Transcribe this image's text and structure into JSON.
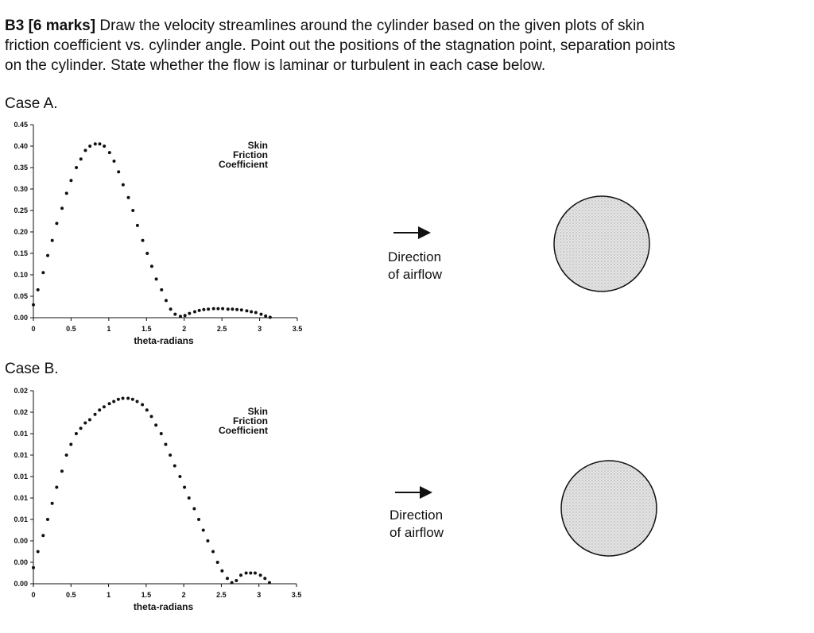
{
  "question": {
    "label": "B3 [6 marks]",
    "lines": [
      "Draw the velocity streamlines around the cylinder based on the given plots of skin",
      "friction coefficient vs. cylinder angle. Point out the positions of the stagnation point, separation points",
      "on the cylinder. State whether the flow is laminar or turbulent in each case below."
    ]
  },
  "cases": [
    {
      "label": "Case A.",
      "direction": [
        "Direction",
        "of airflow"
      ]
    },
    {
      "label": "Case B.",
      "direction": [
        "Direction",
        "of airflow"
      ]
    }
  ],
  "chart_data": [
    {
      "type": "scatter",
      "annotation": [
        "Skin",
        "Friction",
        "Coefficient"
      ],
      "xlabel": "theta-radians",
      "color": "#111111",
      "x": [
        0,
        0.06,
        0.13,
        0.19,
        0.25,
        0.31,
        0.38,
        0.44,
        0.5,
        0.57,
        0.63,
        0.69,
        0.75,
        0.82,
        0.88,
        0.94,
        1.01,
        1.07,
        1.13,
        1.19,
        1.26,
        1.32,
        1.38,
        1.45,
        1.51,
        1.57,
        1.63,
        1.7,
        1.76,
        1.82,
        1.88,
        1.95,
        2.01,
        2.07,
        2.14,
        2.2,
        2.26,
        2.32,
        2.39,
        2.45,
        2.51,
        2.58,
        2.64,
        2.7,
        2.76,
        2.83,
        2.89,
        2.95,
        3.02,
        3.08,
        3.14
      ],
      "values": [
        0.03,
        0.065,
        0.105,
        0.145,
        0.18,
        0.22,
        0.255,
        0.29,
        0.32,
        0.35,
        0.37,
        0.39,
        0.4,
        0.405,
        0.405,
        0.4,
        0.385,
        0.365,
        0.34,
        0.31,
        0.28,
        0.25,
        0.215,
        0.18,
        0.15,
        0.12,
        0.09,
        0.065,
        0.04,
        0.02,
        0.008,
        0.003,
        0.005,
        0.01,
        0.014,
        0.017,
        0.019,
        0.02,
        0.021,
        0.021,
        0.021,
        0.02,
        0.02,
        0.019,
        0.018,
        0.016,
        0.014,
        0.012,
        0.008,
        0.004,
        0.001
      ],
      "xlim": [
        0,
        3.5
      ],
      "xticks": [
        0,
        0.5,
        1,
        1.5,
        2,
        2.5,
        3,
        3.5
      ],
      "ylim": [
        0,
        0.45
      ],
      "yticks": [
        {
          "value": 0,
          "label": "0.00"
        },
        0.05,
        {
          "value": 0.1,
          "label": "0.10"
        },
        0.15,
        {
          "value": 0.2,
          "label": "0.20"
        },
        0.25,
        {
          "value": 0.3,
          "label": "0.30"
        },
        0.35,
        {
          "value": 0.4,
          "label": "0.40"
        },
        0.45
      ]
    },
    {
      "type": "scatter",
      "annotation": [
        "Skin",
        "Friction",
        "Coefficient"
      ],
      "xlabel": "theta-radians",
      "color": "#111111",
      "x": [
        0,
        0.06,
        0.13,
        0.19,
        0.25,
        0.31,
        0.38,
        0.44,
        0.5,
        0.57,
        0.63,
        0.69,
        0.75,
        0.82,
        0.88,
        0.94,
        1.01,
        1.07,
        1.13,
        1.19,
        1.26,
        1.32,
        1.38,
        1.45,
        1.51,
        1.57,
        1.63,
        1.7,
        1.76,
        1.82,
        1.88,
        1.95,
        2.01,
        2.07,
        2.14,
        2.2,
        2.26,
        2.32,
        2.39,
        2.45,
        2.51,
        2.58,
        2.64,
        2.7,
        2.76,
        2.83,
        2.89,
        2.95,
        3.02,
        3.08,
        3.14
      ],
      "values": [
        0.0015,
        0.003,
        0.0045,
        0.006,
        0.0075,
        0.009,
        0.0105,
        0.012,
        0.013,
        0.014,
        0.0145,
        0.015,
        0.0153,
        0.0158,
        0.0162,
        0.0165,
        0.0168,
        0.017,
        0.0172,
        0.0173,
        0.0173,
        0.0172,
        0.017,
        0.0167,
        0.0162,
        0.0156,
        0.0148,
        0.014,
        0.013,
        0.012,
        0.011,
        0.01,
        0.009,
        0.008,
        0.007,
        0.006,
        0.005,
        0.004,
        0.003,
        0.002,
        0.0012,
        0.0005,
        0.0001,
        0.0003,
        0.0008,
        0.001,
        0.001,
        0.001,
        0.0008,
        0.0005,
        0.0001
      ],
      "xlim": [
        0,
        3.5
      ],
      "xticks": [
        0,
        0.5,
        1,
        1.5,
        2,
        2.5,
        3,
        3.5
      ],
      "ylim": [
        0,
        0.018
      ],
      "yticks": [
        {
          "value": 0,
          "label": "0.00"
        },
        {
          "value": 0.002,
          "label": "0.00"
        },
        {
          "value": 0.004,
          "label": "0.00"
        },
        {
          "value": 0.006,
          "label": "0.01"
        },
        {
          "value": 0.008,
          "label": "0.01"
        },
        {
          "value": 0.01,
          "label": "0.01"
        },
        {
          "value": 0.012,
          "label": "0.01"
        },
        {
          "value": 0.014,
          "label": "0.01"
        },
        {
          "value": 0.016,
          "label": "0.02"
        },
        {
          "value": 0.018,
          "label": "0.02"
        }
      ]
    }
  ]
}
